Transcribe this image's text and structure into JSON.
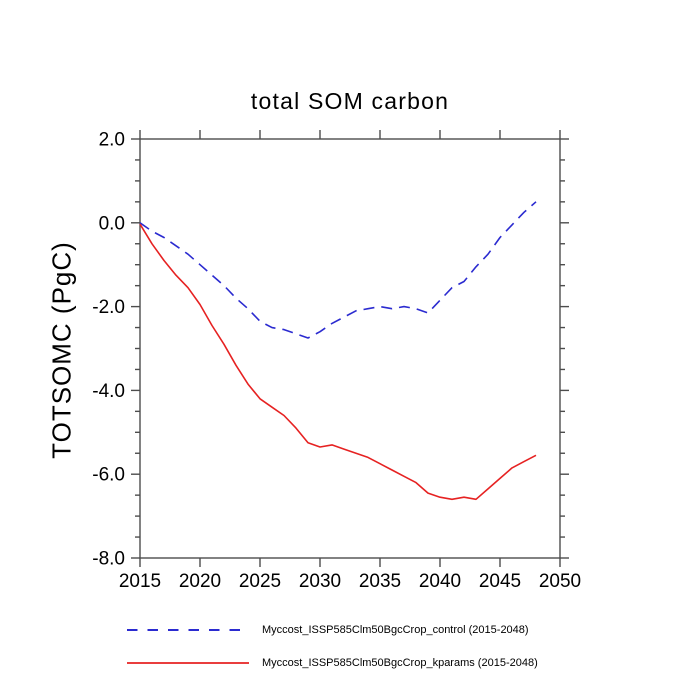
{
  "title": "total SOM carbon",
  "y_axis_title": "TOTSOMC (PgC)",
  "colors": {
    "background": "#ffffff",
    "axis": "#4d4d4d",
    "text": "#000000",
    "control_line": "#2b2bd0",
    "kparams_line": "#e62222"
  },
  "chart_data": {
    "type": "line",
    "title": "total SOM carbon",
    "xlabel": "",
    "ylabel": "TOTSOMC (PgC)",
    "xlim": [
      2015,
      2050
    ],
    "ylim": [
      -8.0,
      2.0
    ],
    "grid": false,
    "legend_position": "below-plot",
    "x_ticks": [
      2015,
      2020,
      2025,
      2030,
      2035,
      2040,
      2045,
      2050
    ],
    "x_tick_labels": [
      "2015",
      "2020",
      "2025",
      "2030",
      "2035",
      "2040",
      "2045",
      "2050"
    ],
    "y_ticks": [
      2.0,
      0.0,
      -2.0,
      -4.0,
      -6.0,
      -8.0
    ],
    "y_tick_labels": [
      "2.0",
      "0.0",
      "-2.0",
      "-4.0",
      "-6.0",
      "-8.0"
    ],
    "y_minor_step": 0.5,
    "x": [
      2015,
      2016,
      2017,
      2018,
      2019,
      2020,
      2021,
      2022,
      2023,
      2024,
      2025,
      2026,
      2027,
      2028,
      2029,
      2030,
      2031,
      2032,
      2033,
      2034,
      2035,
      2036,
      2037,
      2038,
      2039,
      2040,
      2041,
      2042,
      2043,
      2044,
      2045,
      2046,
      2047,
      2048
    ],
    "series": [
      {
        "name": "Myccost_ISSP585Clm50BgcCrop_control (2015-2048)",
        "style": "dashed",
        "color": "#2b2bd0",
        "values": [
          0.0,
          -0.2,
          -0.35,
          -0.55,
          -0.75,
          -1.0,
          -1.25,
          -1.5,
          -1.8,
          -2.05,
          -2.35,
          -2.5,
          -2.55,
          -2.65,
          -2.75,
          -2.6,
          -2.4,
          -2.25,
          -2.1,
          -2.05,
          -2.0,
          -2.05,
          -2.0,
          -2.05,
          -2.15,
          -1.85,
          -1.55,
          -1.4,
          -1.05,
          -0.75,
          -0.35,
          -0.05,
          0.25,
          0.5
        ]
      },
      {
        "name": "Myccost_ISSP585Clm50BgcCrop_kparams (2015-2048)",
        "style": "solid",
        "color": "#e62222",
        "values": [
          -0.03,
          -0.5,
          -0.9,
          -1.25,
          -1.55,
          -1.95,
          -2.45,
          -2.9,
          -3.4,
          -3.85,
          -4.2,
          -4.4,
          -4.6,
          -4.9,
          -5.25,
          -5.35,
          -5.3,
          -5.4,
          -5.5,
          -5.6,
          -5.75,
          -5.9,
          -6.05,
          -6.2,
          -6.45,
          -6.55,
          -6.6,
          -6.55,
          -6.6,
          -6.35,
          -6.1,
          -5.85,
          -5.7,
          -5.55
        ]
      }
    ]
  },
  "legend": {
    "items": [
      {
        "label": "Myccost_ISSP585Clm50BgcCrop_control (2015-2048)"
      },
      {
        "label": "Myccost_ISSP585Clm50BgcCrop_kparams (2015-2048)"
      }
    ]
  }
}
